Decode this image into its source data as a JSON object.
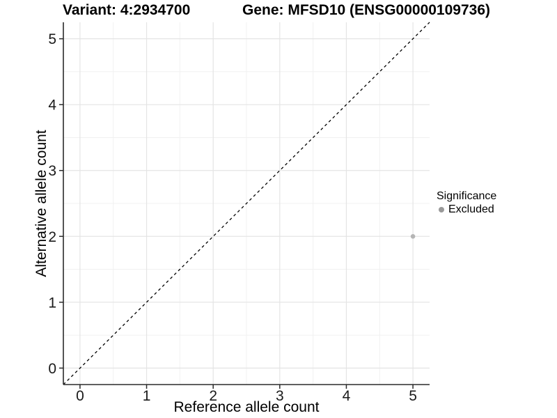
{
  "title": {
    "variant": "Variant: 4:2934700",
    "gene": "Gene: MFSD10 (ENSG00000109736)"
  },
  "chart_data": {
    "type": "scatter",
    "title": "Variant: 4:2934700   Gene: MFSD10 (ENSG00000109736)",
    "xlabel": "Reference allele count",
    "ylabel": "Alternative allele count",
    "xlim": [
      -0.25,
      5.25
    ],
    "ylim": [
      -0.25,
      5.25
    ],
    "x_ticks": [
      0,
      1,
      2,
      3,
      4,
      5
    ],
    "y_ticks": [
      0,
      1,
      2,
      3,
      4,
      5
    ],
    "grid": true,
    "points": [
      {
        "x": 5,
        "y": 2,
        "significance": "Excluded"
      }
    ],
    "reference_line": {
      "style": "dashed",
      "equation": "y = x",
      "from": [
        -0.25,
        -0.25
      ],
      "to": [
        5.25,
        5.25
      ]
    },
    "legend": {
      "title": "Significance",
      "position": "right",
      "entries": [
        {
          "label": "Excluded",
          "color": "#999999"
        }
      ]
    },
    "colors": {
      "point": "#b5b5b5",
      "grid_major": "#e4e4e4",
      "grid_minor": "#f1f1f1",
      "axis": "#2a2a2a",
      "reference_line": "#000000",
      "tick_text": "#1a1a1a"
    }
  }
}
